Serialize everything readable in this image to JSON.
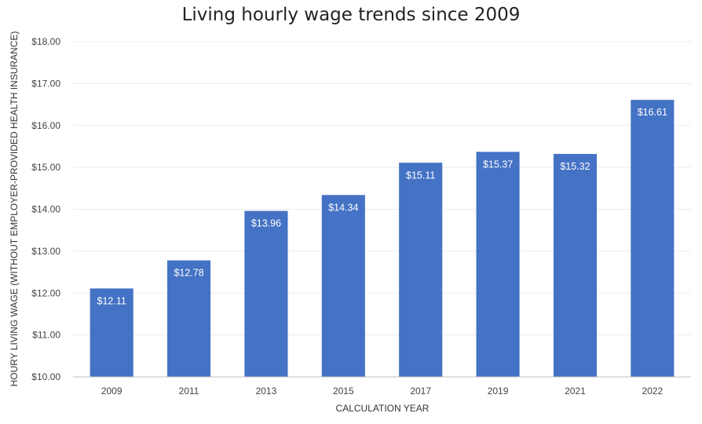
{
  "chart_data": {
    "type": "bar",
    "title": "Living hourly wage trends since 2009",
    "xlabel": "CALCULATION YEAR",
    "ylabel": "HOURY LIVING WAGE (WITHOUT EMPLOYER-PROVIDED HEALTH INSURANCE)",
    "categories": [
      "2009",
      "2011",
      "2013",
      "2015",
      "2017",
      "2019",
      "2021",
      "2022"
    ],
    "values": [
      12.11,
      12.78,
      13.96,
      14.34,
      15.11,
      15.37,
      15.32,
      16.61
    ],
    "data_labels": [
      "$12.11",
      "$12.78",
      "$13.96",
      "$14.34",
      "$15.11",
      "$15.37",
      "$15.32",
      "$16.61"
    ],
    "ylim": [
      10,
      18
    ],
    "yticks": [
      "$10.00",
      "$11.00",
      "$12.00",
      "$13.00",
      "$14.00",
      "$15.00",
      "$16.00",
      "$17.00",
      "$18.00"
    ],
    "grid": true,
    "bar_color": "#4472C4"
  }
}
